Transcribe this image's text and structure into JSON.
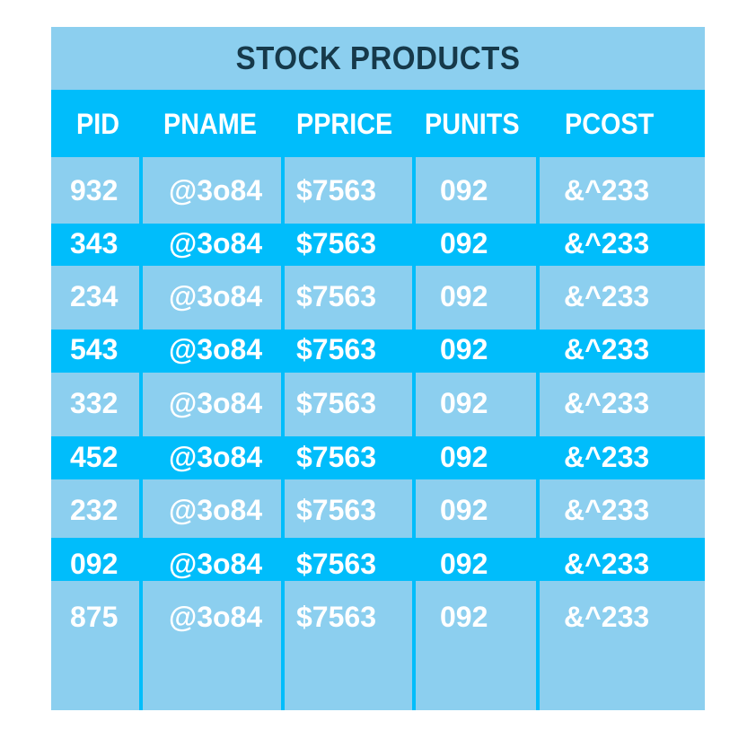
{
  "title": "STOCK PRODUCTS",
  "columns": [
    "PID",
    "PNAME",
    "PPRICE",
    "PUNITS",
    "PCOST"
  ],
  "rows": [
    [
      "932",
      "@3o84",
      "$7563",
      "092",
      "&^233"
    ],
    [
      "343",
      "@3o84",
      "$7563",
      "092",
      "&^233"
    ],
    [
      "234",
      "@3o84",
      "$7563",
      "092",
      "&^233"
    ],
    [
      "543",
      "@3o84",
      "$7563",
      "092",
      "&^233"
    ],
    [
      "332",
      "@3o84",
      "$7563",
      "092",
      "&^233"
    ],
    [
      "452",
      "@3o84",
      "$7563",
      "092",
      "&^233"
    ],
    [
      "232",
      "@3o84",
      "$7563",
      "092",
      "&^233"
    ],
    [
      "092",
      "@3o84",
      "$7563",
      "092",
      "&^233"
    ],
    [
      "875",
      "@3o84",
      "$7563",
      "092",
      "&^233"
    ]
  ],
  "colors": {
    "light_cell": "#8ccfef",
    "bright_band": "#00bdfb",
    "title_text": "#16394a",
    "cell_text": "#ffffff"
  }
}
